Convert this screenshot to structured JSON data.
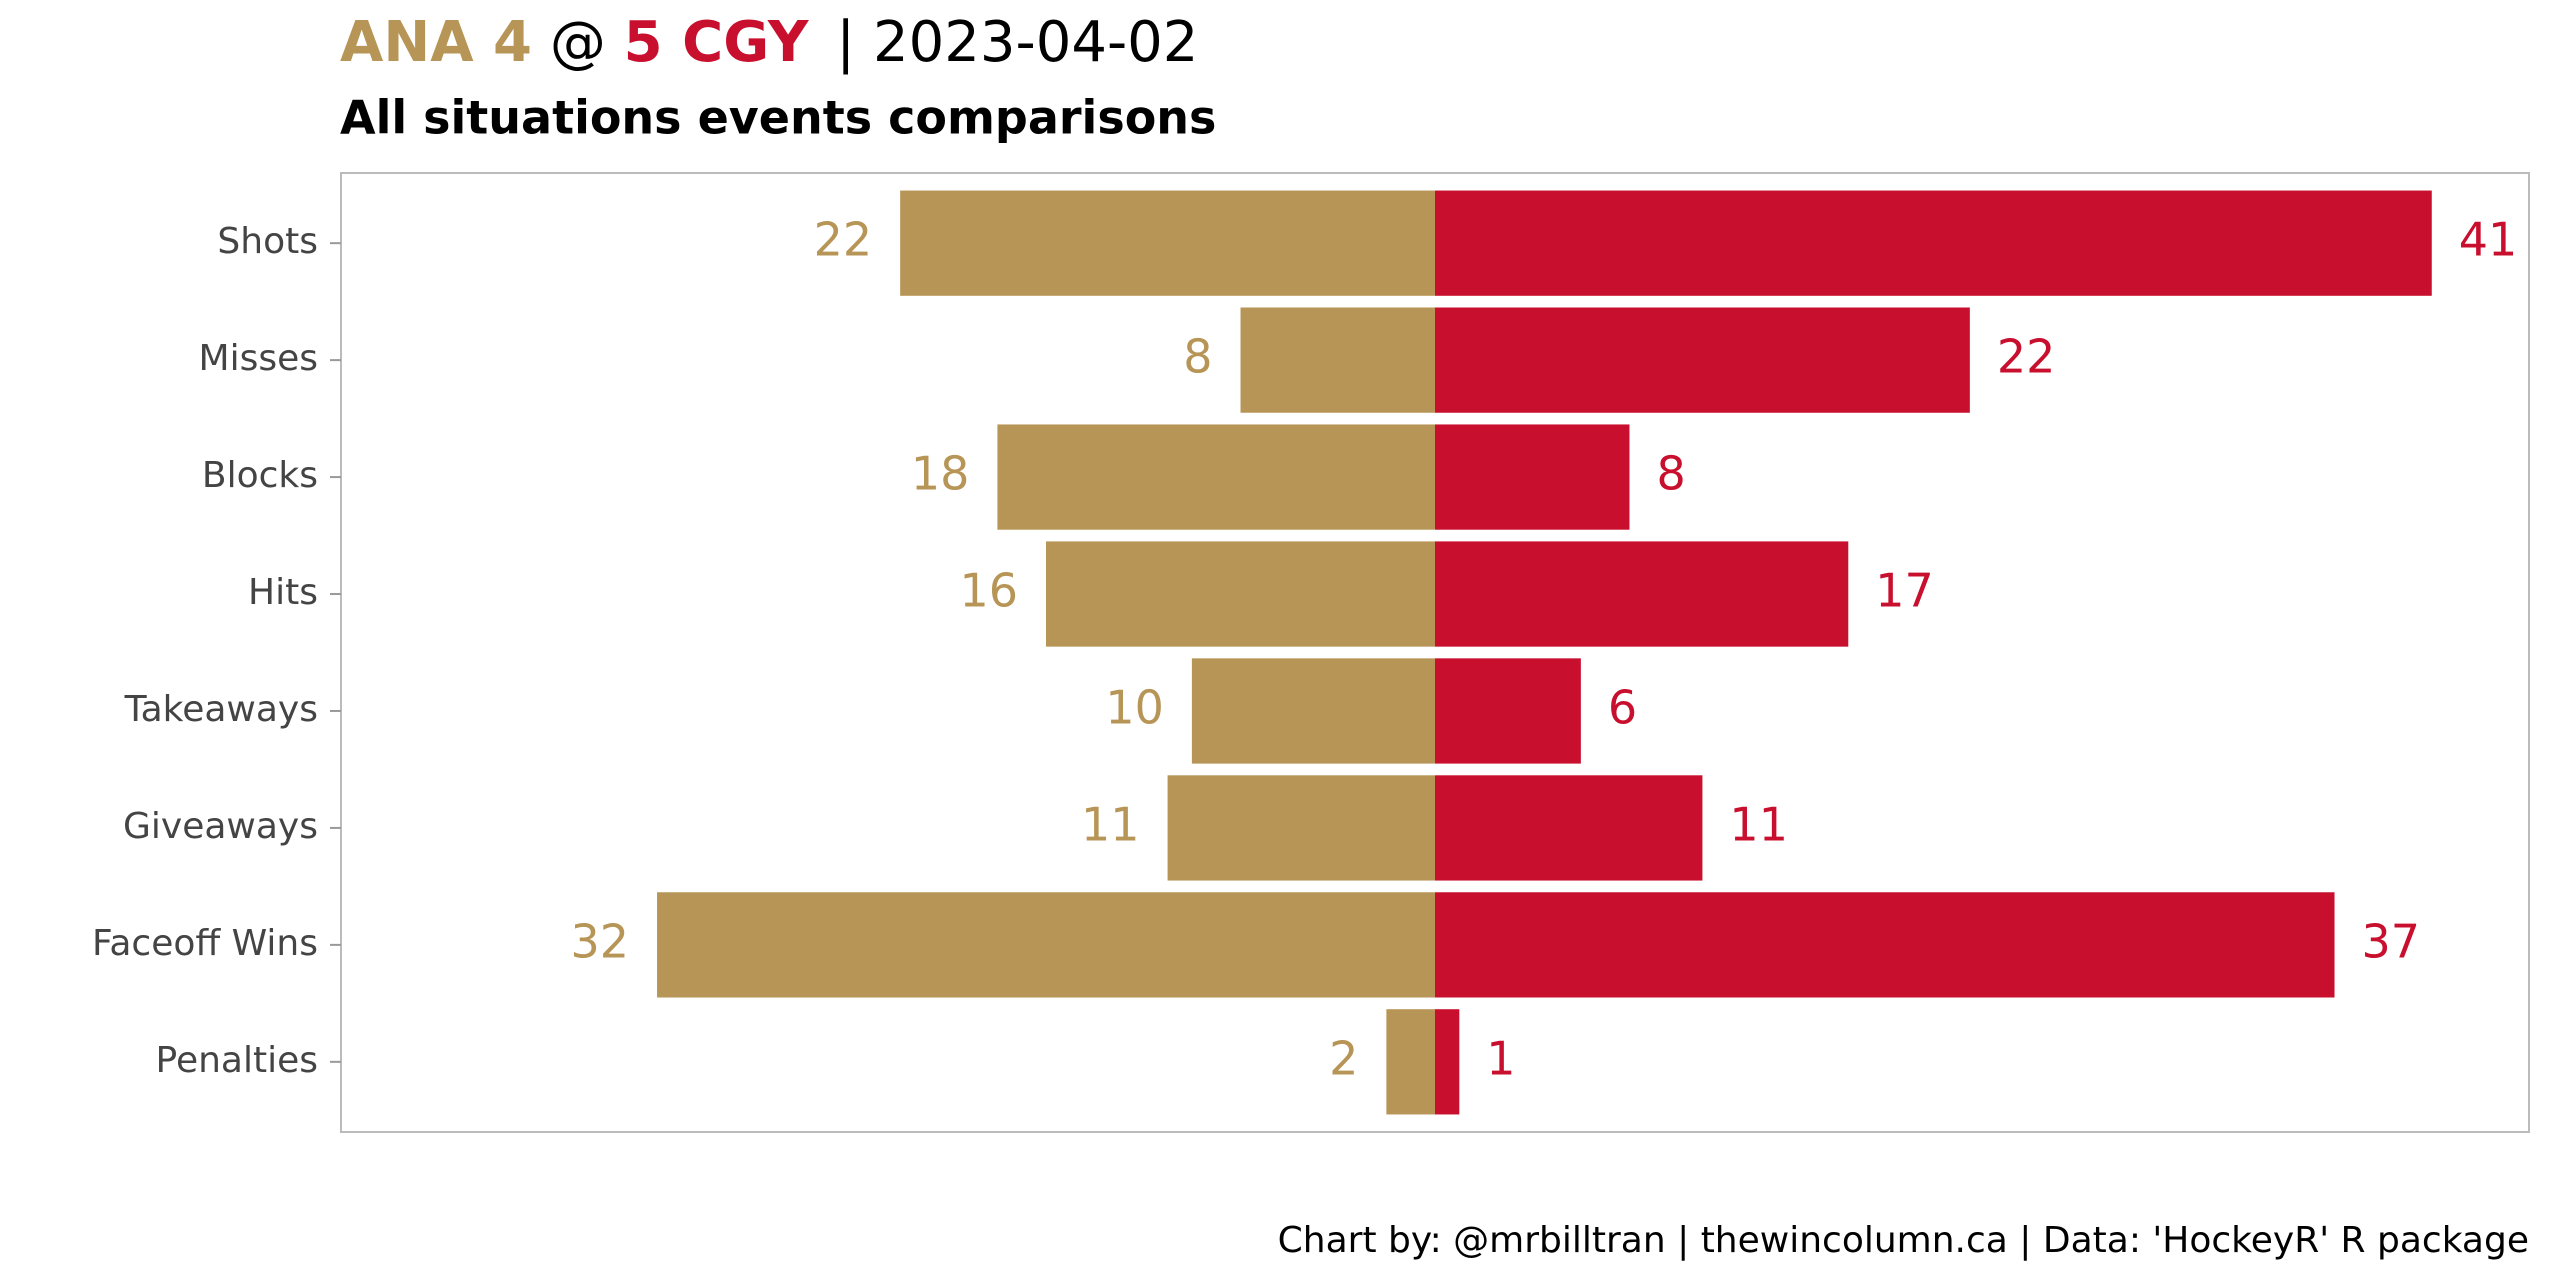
{
  "chart_data": {
    "type": "diverging_bar",
    "title": {
      "away": "ANA 4",
      "at": "@",
      "home": "5 CGY",
      "separator": "|",
      "date": "2023-04-02"
    },
    "subtitle": "All situations events comparisons",
    "caption": "Chart by: @mrbilltran | thewincolumn.ca | Data: 'HockeyR' R package",
    "categories": [
      "Shots",
      "Misses",
      "Blocks",
      "Hits",
      "Takeaways",
      "Giveaways",
      "Faceoff Wins",
      "Penalties"
    ],
    "series": [
      {
        "color": "#b79557",
        "side": "left",
        "values": [
          22,
          8,
          18,
          16,
          10,
          11,
          32,
          2
        ]
      },
      {
        "color": "#c8102e",
        "side": "right",
        "values": [
          41,
          22,
          8,
          17,
          6,
          11,
          37,
          1
        ]
      }
    ],
    "xlim": [
      -45,
      45
    ]
  }
}
